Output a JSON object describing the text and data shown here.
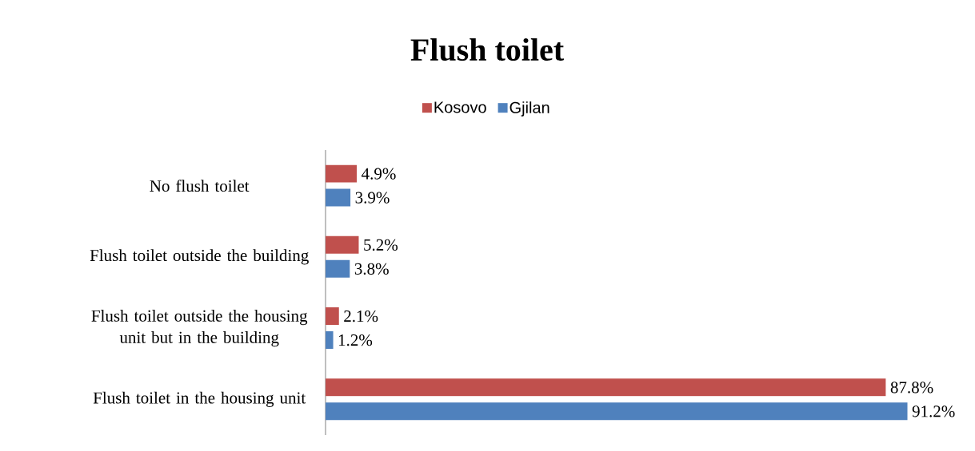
{
  "chart_data": {
    "type": "bar",
    "orientation": "horizontal",
    "title": "Flush toilet",
    "categories": [
      "No flush toilet",
      "Flush toilet outside the building",
      "Flush toilet outside the housing unit but in the building",
      "Flush toilet in the housing unit"
    ],
    "series": [
      {
        "name": "Kosovo",
        "color": "#c0504d",
        "values": [
          4.9,
          5.2,
          2.1,
          87.8
        ],
        "value_labels": [
          "4.9%",
          "5.2%",
          "2.1%",
          "87.8%"
        ]
      },
      {
        "name": "Gjilan",
        "color": "#4f81bd",
        "values": [
          3.9,
          3.8,
          1.2,
          91.2
        ],
        "value_labels": [
          "3.9%",
          "3.8%",
          "1.2%",
          "91.2%"
        ]
      }
    ],
    "legend": "top"
  }
}
